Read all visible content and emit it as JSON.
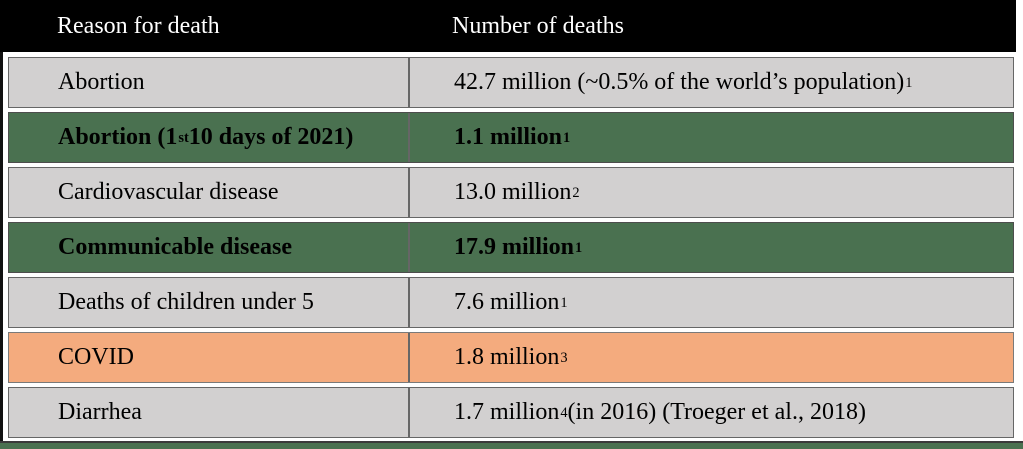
{
  "table": {
    "columns": [
      {
        "label": "Reason for death"
      },
      {
        "label": "Number of deaths"
      }
    ],
    "rows": [
      {
        "style": "gray",
        "bold": false,
        "reason": [
          {
            "t": "Abortion"
          }
        ],
        "deaths": [
          {
            "t": "42.7 million (~0.5% of the world’s population)"
          },
          {
            "t": "1",
            "sup": true
          }
        ]
      },
      {
        "style": "green",
        "bold": true,
        "reason": [
          {
            "t": "Abortion (1"
          },
          {
            "t": "st",
            "sup": true
          },
          {
            "t": " 10 days of 2021)"
          }
        ],
        "deaths": [
          {
            "t": "1.1 million"
          },
          {
            "t": "1",
            "sup": true
          }
        ]
      },
      {
        "style": "gray",
        "bold": false,
        "reason": [
          {
            "t": "Cardiovascular disease"
          }
        ],
        "deaths": [
          {
            "t": "13.0 million"
          },
          {
            "t": "2",
            "sup": true
          }
        ]
      },
      {
        "style": "green",
        "bold": true,
        "reason": [
          {
            "t": "Communicable disease"
          }
        ],
        "deaths": [
          {
            "t": "17.9 million"
          },
          {
            "t": "1",
            "sup": true
          }
        ]
      },
      {
        "style": "gray",
        "bold": false,
        "reason": [
          {
            "t": "Deaths of children under 5"
          }
        ],
        "deaths": [
          {
            "t": "7.6 million"
          },
          {
            "t": "1",
            "sup": true
          }
        ]
      },
      {
        "style": "orange",
        "bold": false,
        "reason": [
          {
            "t": "COVID"
          }
        ],
        "deaths": [
          {
            "t": "1.8 million"
          },
          {
            "t": "3",
            "sup": true
          }
        ]
      },
      {
        "style": "gray",
        "bold": false,
        "reason": [
          {
            "t": "Diarrhea"
          }
        ],
        "deaths": [
          {
            "t": "1.7 million"
          },
          {
            "t": "4",
            "sup": true
          },
          {
            "t": " (in 2016) (Troeger et al., 2018)"
          }
        ]
      }
    ]
  },
  "colors": {
    "header_bg": "#000000",
    "header_text": "#ffffff",
    "row_gray": "#d2d0d0",
    "row_green": "#4a7150",
    "row_orange": "#f4ab7e",
    "row_border": "#666666",
    "bottom_bar": "#4a7150"
  }
}
